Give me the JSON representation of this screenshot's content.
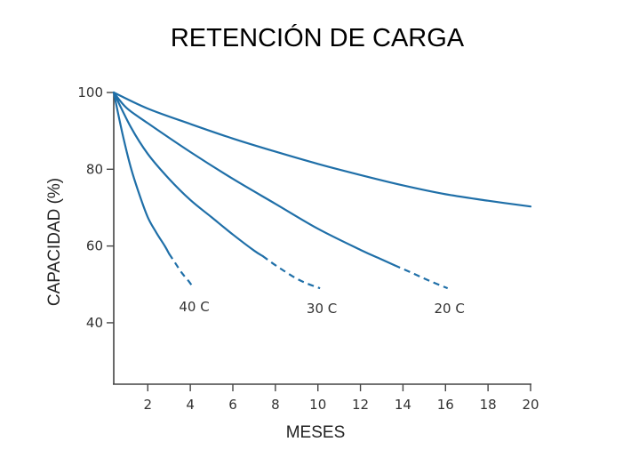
{
  "chart_data": {
    "type": "line",
    "title": "RETENCIÓN DE CARGA",
    "xlabel": "MESES",
    "ylabel": "CAPACIDAD (%)",
    "xlim": [
      0.4,
      20
    ],
    "ylim": [
      24,
      100
    ],
    "xticks": [
      2,
      4,
      6,
      8,
      10,
      12,
      14,
      16,
      18,
      20
    ],
    "yticks": [
      40,
      60,
      80,
      100
    ],
    "grid": false,
    "line_color": "#1f6fa8",
    "series": [
      {
        "name": "40 C",
        "x": [
          0.4,
          0.8,
          1.2,
          1.6,
          2.0,
          2.4,
          2.8,
          3.0,
          3.3,
          3.6,
          3.9,
          4.1
        ],
        "y": [
          100,
          89.5,
          80.5,
          73.5,
          67.5,
          63.5,
          60.0,
          58.0,
          55.5,
          53.0,
          51.0,
          49.5
        ],
        "dashed_from_x": 3.0
      },
      {
        "name": "30 C",
        "x": [
          0.4,
          1.2,
          2.0,
          3.0,
          4.0,
          5.0,
          6.0,
          7.0,
          7.4,
          8.0,
          8.5,
          9.0,
          9.5,
          10.1
        ],
        "y": [
          100,
          91.0,
          84.0,
          77.5,
          72.0,
          67.5,
          63.0,
          58.8,
          57.4,
          55.0,
          53.2,
          51.5,
          50.2,
          49.0
        ],
        "dashed_from_x": 7.4
      },
      {
        "name": "20 C",
        "x": [
          0.4,
          1.0,
          2.0,
          4.0,
          6.0,
          8.0,
          10.0,
          12.0,
          13.0,
          13.6,
          14.5,
          15.3,
          16.1
        ],
        "y": [
          100,
          96.0,
          92.0,
          84.5,
          77.5,
          71.0,
          64.5,
          59.0,
          56.5,
          55.0,
          52.8,
          50.8,
          49.0
        ],
        "dashed_from_x": 13.6
      },
      {
        "x": [
          0.4,
          2.0,
          4.0,
          6.0,
          8.0,
          10.0,
          12.0,
          14.0,
          16.0,
          18.0,
          20.0
        ],
        "y": [
          100,
          95.8,
          91.8,
          88.0,
          84.6,
          81.4,
          78.5,
          75.8,
          73.5,
          71.8,
          70.3
        ]
      }
    ]
  }
}
